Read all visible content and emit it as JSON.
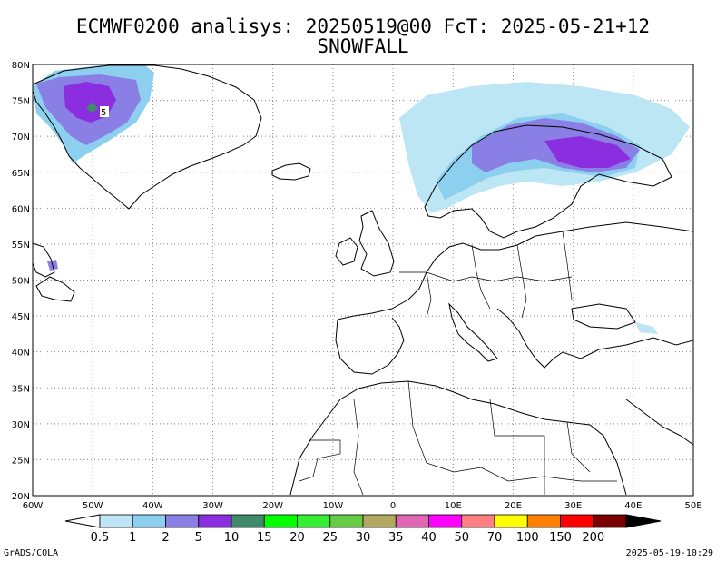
{
  "title_line1": "ECMWF0200 analisys: 20250519@00 FcT: 2025-05-21+12",
  "title_line2": "SNOWFALL",
  "footer_left": "GrADS/COLA",
  "footer_right": "2025-05-19-10:29",
  "map": {
    "projection": "lat-lon",
    "lon_range": [
      -60,
      50
    ],
    "lat_range": [
      20,
      80
    ],
    "grid": "dotted",
    "lon_ticks": [
      "60W",
      "50W",
      "40W",
      "30W",
      "20W",
      "10W",
      "0",
      "10E",
      "20E",
      "30E",
      "40E",
      "50E"
    ],
    "lat_ticks": [
      "80N",
      "75N",
      "70N",
      "65N",
      "60N",
      "55N",
      "50N",
      "45N",
      "40N",
      "35N",
      "30N",
      "25N",
      "20N"
    ],
    "contour_label": "5"
  },
  "legend": {
    "labels": [
      "0.5",
      "1",
      "2",
      "5",
      "10",
      "15",
      "20",
      "25",
      "30",
      "35",
      "40",
      "50",
      "70",
      "100",
      "150",
      "200"
    ],
    "colors": [
      "#bde6f4",
      "#8ccfee",
      "#8a7fe4",
      "#8a2ee0",
      "#3f8a6a",
      "#00ff00",
      "#33ee33",
      "#66cc44",
      "#b3a860",
      "#e066b3",
      "#ff00ff",
      "#ff8080",
      "#ffff00",
      "#ff8000",
      "#ff0000",
      "#7a0000"
    ],
    "low_arrow_color": "#ffffff",
    "high_arrow_color": "#000000"
  }
}
